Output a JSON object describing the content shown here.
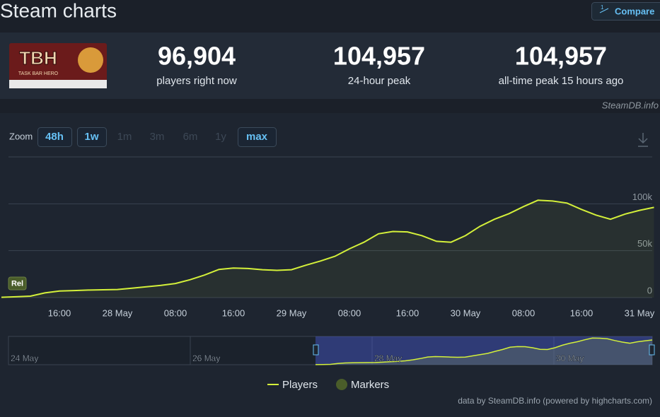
{
  "page_title": "Steam charts",
  "compare": "Compare",
  "logo": {
    "title": "TBH",
    "subtitle": "TASK BAR HERO"
  },
  "stats": [
    {
      "value": "96,904",
      "label": "players right now"
    },
    {
      "value": "104,957",
      "label": "24-hour peak"
    },
    {
      "value": "104,957",
      "label": "all-time peak 15 hours ago"
    }
  ],
  "source": "SteamDB.info",
  "zoom": {
    "label": "Zoom",
    "buttons": [
      "48h",
      "1w",
      "1m",
      "3m",
      "6m",
      "1y",
      "max"
    ],
    "active": [
      true,
      true,
      false,
      false,
      false,
      false,
      true
    ]
  },
  "credit": "data by SteamDB.info (powered by highcharts.com)",
  "chart_data": {
    "type": "line",
    "categories": [
      null,
      null,
      null,
      null,
      "16:00",
      null,
      null,
      null,
      "28 May",
      null,
      null,
      null,
      "08:00",
      null,
      null,
      null,
      "16:00",
      null,
      null,
      null,
      "29 May",
      null,
      null,
      null,
      "08:00",
      null,
      null,
      null,
      "16:00",
      null,
      null,
      null,
      "30 May",
      null,
      null,
      null,
      "08:00",
      null,
      null,
      null,
      "16:00",
      null,
      null,
      null,
      "31 May",
      null
    ],
    "series": [
      {
        "name": "Players",
        "color": "#d4f03a",
        "values": [
          300,
          800,
          1500,
          5000,
          7000,
          7500,
          8000,
          8300,
          8600,
          10000,
          11500,
          13000,
          15000,
          19000,
          24000,
          30000,
          31500,
          31000,
          29700,
          29000,
          29700,
          34500,
          39000,
          44000,
          52000,
          59000,
          68000,
          70500,
          70000,
          66000,
          60000,
          59000,
          66000,
          76000,
          83500,
          89500,
          97000,
          103800,
          103000,
          100800,
          94000,
          88000,
          83500,
          89000,
          93000,
          96200
        ]
      }
    ],
    "markers": {
      "name": "Markers",
      "color": "#4a5d2a"
    },
    "annotations": [
      {
        "text": "Rel"
      }
    ],
    "ylim": [
      0,
      150000
    ],
    "yticks": [
      0,
      {
        "value": 50000,
        "label": "50k"
      },
      {
        "value": 100000,
        "label": "100k"
      }
    ],
    "grid": true,
    "navigator": {
      "labels": [
        "24 May",
        "26 May",
        "28 May",
        "30 May"
      ]
    }
  }
}
